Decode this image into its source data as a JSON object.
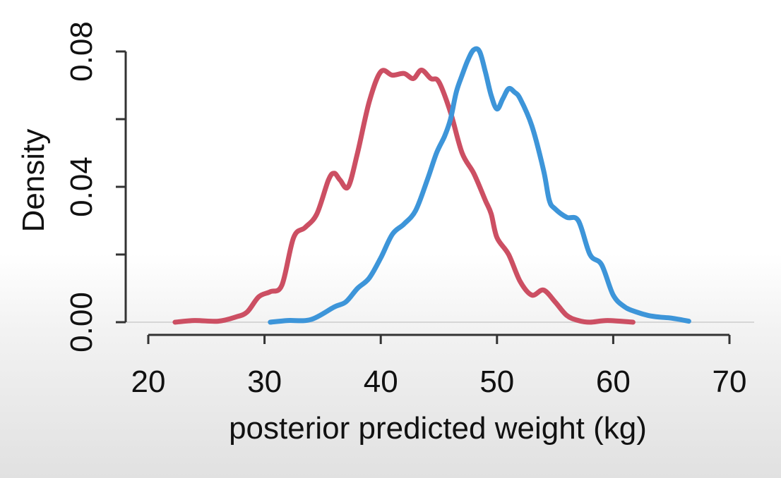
{
  "chart_data": {
    "type": "line",
    "title": "",
    "xlabel": "posterior predicted weight (kg)",
    "ylabel": "Density",
    "xlim": [
      20,
      70
    ],
    "ylim": [
      0,
      0.08
    ],
    "x_ticks": [
      "20",
      "30",
      "40",
      "50",
      "60",
      "70"
    ],
    "y_ticks": [
      "0.00",
      "0.04",
      "0.08"
    ],
    "baseline": 0,
    "series": [
      {
        "color": "#cc4f63",
        "points": [
          [
            22.3,
            0.0
          ],
          [
            24.0,
            0.0005
          ],
          [
            26.0,
            0.0003
          ],
          [
            27.5,
            0.0015
          ],
          [
            28.5,
            0.003
          ],
          [
            29.5,
            0.0075
          ],
          [
            30.5,
            0.009
          ],
          [
            31.5,
            0.011
          ],
          [
            32.5,
            0.025
          ],
          [
            33.5,
            0.028
          ],
          [
            34.5,
            0.032
          ],
          [
            35.5,
            0.042
          ],
          [
            36.0,
            0.044
          ],
          [
            36.5,
            0.042
          ],
          [
            37.2,
            0.04
          ],
          [
            38.0,
            0.05
          ],
          [
            39.0,
            0.065
          ],
          [
            40.0,
            0.074
          ],
          [
            41.0,
            0.073
          ],
          [
            42.0,
            0.0735
          ],
          [
            42.8,
            0.072
          ],
          [
            43.5,
            0.0745
          ],
          [
            44.3,
            0.072
          ],
          [
            45.0,
            0.071
          ],
          [
            46.0,
            0.062
          ],
          [
            47.0,
            0.05
          ],
          [
            48.0,
            0.044
          ],
          [
            49.0,
            0.036
          ],
          [
            49.5,
            0.032
          ],
          [
            50.0,
            0.025
          ],
          [
            51.0,
            0.02
          ],
          [
            52.0,
            0.012
          ],
          [
            53.0,
            0.008
          ],
          [
            54.0,
            0.0095
          ],
          [
            55.0,
            0.006
          ],
          [
            56.0,
            0.002
          ],
          [
            57.0,
            0.0005
          ],
          [
            58.0,
            0.0
          ],
          [
            59.5,
            0.0005
          ],
          [
            61.7,
            0.0
          ]
        ]
      },
      {
        "color": "#3d95d9",
        "points": [
          [
            30.5,
            0.0
          ],
          [
            32.0,
            0.0005
          ],
          [
            34.0,
            0.0008
          ],
          [
            36.0,
            0.0045
          ],
          [
            37.0,
            0.006
          ],
          [
            38.0,
            0.01
          ],
          [
            39.0,
            0.013
          ],
          [
            40.0,
            0.019
          ],
          [
            41.0,
            0.026
          ],
          [
            42.0,
            0.029
          ],
          [
            43.0,
            0.033
          ],
          [
            44.0,
            0.042
          ],
          [
            44.8,
            0.05
          ],
          [
            45.5,
            0.055
          ],
          [
            46.0,
            0.06
          ],
          [
            46.5,
            0.068
          ],
          [
            47.0,
            0.073
          ],
          [
            47.5,
            0.0775
          ],
          [
            48.0,
            0.0805
          ],
          [
            48.5,
            0.08
          ],
          [
            49.0,
            0.074
          ],
          [
            49.5,
            0.067
          ],
          [
            50.0,
            0.063
          ],
          [
            50.5,
            0.066
          ],
          [
            51.0,
            0.069
          ],
          [
            51.5,
            0.068
          ],
          [
            52.0,
            0.066
          ],
          [
            53.0,
            0.058
          ],
          [
            54.0,
            0.045
          ],
          [
            54.5,
            0.036
          ],
          [
            55.0,
            0.0335
          ],
          [
            56.0,
            0.031
          ],
          [
            57.0,
            0.03
          ],
          [
            58.0,
            0.02
          ],
          [
            59.0,
            0.017
          ],
          [
            60.0,
            0.008
          ],
          [
            61.0,
            0.0045
          ],
          [
            62.0,
            0.003
          ],
          [
            63.0,
            0.002
          ],
          [
            64.0,
            0.0015
          ],
          [
            65.0,
            0.0012
          ],
          [
            66.5,
            0.0003
          ]
        ]
      }
    ]
  }
}
